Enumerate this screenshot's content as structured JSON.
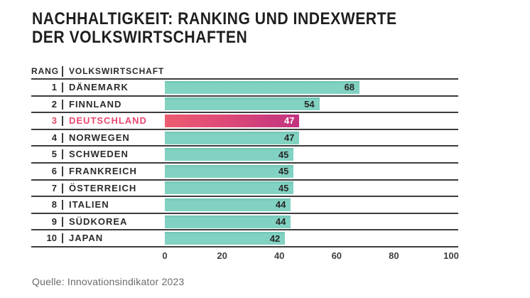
{
  "title": {
    "line1": "NACHHALTIGKEIT: RANKING UND INDEXWERTE",
    "line2": "DER VOLKSWIRTSCHAFTEN"
  },
  "table_header": {
    "rank": "RANG",
    "economy": "VOLKSWIRTSCHAFT"
  },
  "source": "Quelle: Innovationsindikator 2023",
  "colors": {
    "bar_teal": "#7ed0bf",
    "bar_highlight_gradient_start": "#ee5c71",
    "bar_highlight_gradient_end": "#c1337f",
    "highlight_text": "#e8486e",
    "text_dark": "#2b2b2b",
    "line": "#3d3d3d",
    "source_text": "#6b6b6b",
    "background": "#ffffff"
  },
  "chart_data": {
    "type": "bar",
    "orientation": "horizontal",
    "title": "NACHHALTIGKEIT: RANKING UND INDEXWERTE DER VOLKSWIRTSCHAFTEN",
    "ranks": [
      1,
      2,
      3,
      4,
      5,
      6,
      7,
      8,
      9,
      10
    ],
    "categories": [
      "DÄNEMARK",
      "FINNLAND",
      "DEUTSCHLAND",
      "NORWEGEN",
      "SCHWEDEN",
      "FRANKREICH",
      "ÖSTERREICH",
      "ITALIEN",
      "SÜDKOREA",
      "JAPAN"
    ],
    "values": [
      68,
      54,
      47,
      47,
      45,
      45,
      45,
      44,
      44,
      42
    ],
    "highlighted_category": "DEUTSCHLAND",
    "highlighted_index": 2,
    "x_ticks": [
      0,
      20,
      40,
      60,
      80,
      100
    ],
    "xlim": [
      0,
      100
    ],
    "xlabel": "",
    "ylabel": "",
    "grid": "off",
    "legend": "none",
    "value_labels": "inside-bar-right"
  }
}
